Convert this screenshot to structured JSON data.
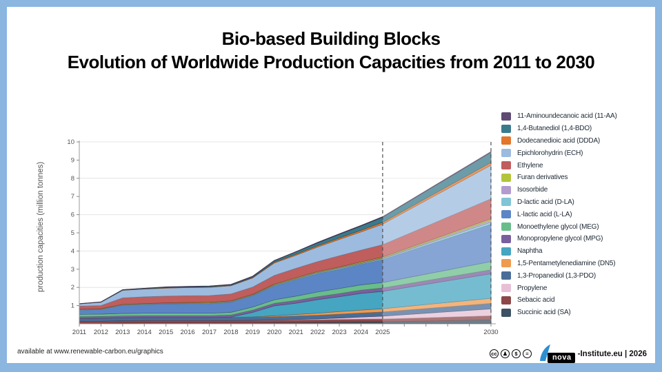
{
  "title": {
    "line1": "Bio-based Building Blocks",
    "line2": "Evolution of Worldwide Production Capacities from 2011 to 2030"
  },
  "footer": {
    "left_text": "available at www.renewable-carbon.eu/graphics",
    "cc_icons": [
      {
        "key": "cc",
        "glyph": "cc"
      },
      {
        "key": "by",
        "glyph": "♟"
      },
      {
        "key": "nc",
        "glyph": "$"
      },
      {
        "key": "nd",
        "glyph": "="
      }
    ],
    "logo_text": "nova",
    "logo_color": "#2e8fd0",
    "right_suffix": "-Institute.eu | 2026"
  },
  "chart_data": {
    "type": "area",
    "stacked": true,
    "stack_note": "series listed in legend order (top of stack first); stacked bottom-to-top in reverse list order",
    "ylabel": "production capacities (million tonnes)",
    "xlabel": "",
    "ylim": [
      0,
      10
    ],
    "y_axis": {
      "ticks": [
        1,
        2,
        3,
        4,
        5,
        6,
        7,
        8,
        9,
        10
      ],
      "gridlines": [
        2,
        4,
        6,
        8,
        10
      ]
    },
    "x_axis": {
      "first": 2011,
      "last": 2030,
      "labeled": [
        2011,
        2012,
        2013,
        2014,
        2015,
        2016,
        2017,
        2018,
        2019,
        2020,
        2021,
        2022,
        2023,
        2024,
        2025,
        2030
      ]
    },
    "dashed_years": [
      2025,
      2030
    ],
    "forecast_start": 2025,
    "x": [
      2011,
      2012,
      2013,
      2014,
      2015,
      2016,
      2017,
      2018,
      2019,
      2020,
      2021,
      2022,
      2023,
      2024,
      2025,
      2030
    ],
    "series": [
      {
        "id": "aa11",
        "name": "11-Aminoundecanoic acid (11-AA)",
        "color": "#5e4a73",
        "values": [
          0.01,
          0.01,
          0.01,
          0.01,
          0.02,
          0.02,
          0.02,
          0.02,
          0.02,
          0.02,
          0.02,
          0.03,
          0.03,
          0.03,
          0.03,
          0.05
        ]
      },
      {
        "id": "bdo14",
        "name": "1,4-Butanediol (1,4-BDO)",
        "color": "#3a7a8c",
        "values": [
          0.0,
          0.01,
          0.02,
          0.03,
          0.03,
          0.03,
          0.04,
          0.04,
          0.05,
          0.08,
          0.12,
          0.16,
          0.2,
          0.24,
          0.28,
          0.55
        ]
      },
      {
        "id": "ddda",
        "name": "Dodecanedioic acid (DDDA)",
        "color": "#e2772b",
        "values": [
          0.01,
          0.01,
          0.01,
          0.01,
          0.02,
          0.02,
          0.02,
          0.02,
          0.03,
          0.05,
          0.06,
          0.07,
          0.08,
          0.09,
          0.1,
          0.15
        ]
      },
      {
        "id": "ech",
        "name": "Epichlorohydrin (ECH)",
        "color": "#9cbbdf",
        "values": [
          0.12,
          0.18,
          0.42,
          0.43,
          0.44,
          0.45,
          0.45,
          0.45,
          0.5,
          0.68,
          0.72,
          0.8,
          0.9,
          1.0,
          1.13,
          1.85
        ]
      },
      {
        "id": "ethylene",
        "name": "Ethylene",
        "color": "#c05d5d",
        "values": [
          0.17,
          0.17,
          0.35,
          0.37,
          0.37,
          0.37,
          0.37,
          0.38,
          0.4,
          0.48,
          0.52,
          0.55,
          0.62,
          0.65,
          0.68,
          1.1
        ]
      },
      {
        "id": "furan",
        "name": "Furan derivatives",
        "color": "#b4c43a",
        "values": [
          0.02,
          0.02,
          0.02,
          0.02,
          0.03,
          0.03,
          0.03,
          0.03,
          0.03,
          0.04,
          0.04,
          0.04,
          0.04,
          0.05,
          0.05,
          0.08
        ]
      },
      {
        "id": "isosorbide",
        "name": "Isosorbide",
        "color": "#b29bce",
        "values": [
          0.01,
          0.01,
          0.01,
          0.01,
          0.02,
          0.02,
          0.02,
          0.02,
          0.02,
          0.03,
          0.03,
          0.03,
          0.04,
          0.04,
          0.04,
          0.1
        ]
      },
      {
        "id": "dla",
        "name": "D-lactic acid (D-LA)",
        "color": "#80c5d6",
        "values": [
          0.02,
          0.02,
          0.02,
          0.02,
          0.02,
          0.03,
          0.03,
          0.03,
          0.03,
          0.04,
          0.04,
          0.05,
          0.05,
          0.05,
          0.06,
          0.12
        ]
      },
      {
        "id": "lla",
        "name": "L-lactic acid (L-LA)",
        "color": "#5c85c6",
        "values": [
          0.23,
          0.25,
          0.45,
          0.48,
          0.5,
          0.51,
          0.52,
          0.55,
          0.62,
          0.75,
          0.9,
          1.0,
          1.05,
          1.12,
          1.25,
          2.05
        ]
      },
      {
        "id": "meg",
        "name": "Monoethylene glycol (MEG)",
        "color": "#68bd8b",
        "values": [
          0.13,
          0.13,
          0.14,
          0.14,
          0.14,
          0.14,
          0.14,
          0.15,
          0.17,
          0.2,
          0.24,
          0.26,
          0.28,
          0.29,
          0.3,
          0.45
        ]
      },
      {
        "id": "mpg",
        "name": "Monopropylene glycol (MPG)",
        "color": "#7a5f9f",
        "values": [
          0.1,
          0.1,
          0.1,
          0.1,
          0.1,
          0.1,
          0.1,
          0.11,
          0.12,
          0.13,
          0.15,
          0.16,
          0.17,
          0.18,
          0.19,
          0.22
        ]
      },
      {
        "id": "naphtha",
        "name": "Naphtha",
        "color": "#46a5c1",
        "values": [
          0,
          0,
          0,
          0,
          0,
          0,
          0,
          0.02,
          0.25,
          0.55,
          0.62,
          0.75,
          0.82,
          0.92,
          0.95,
          1.35
        ]
      },
      {
        "id": "dn5",
        "name": "1,5-Pentametylenediamine (DN5)",
        "color": "#ef9a4f",
        "values": [
          0,
          0,
          0,
          0,
          0,
          0,
          0,
          0,
          0.02,
          0.05,
          0.08,
          0.11,
          0.14,
          0.16,
          0.18,
          0.28
        ]
      },
      {
        "id": "pdo13",
        "name": "1,3-Propanediol (1,3-PDO)",
        "color": "#4a6d98",
        "values": [
          0.16,
          0.16,
          0.16,
          0.16,
          0.16,
          0.16,
          0.16,
          0.17,
          0.17,
          0.18,
          0.19,
          0.2,
          0.21,
          0.22,
          0.23,
          0.3
        ]
      },
      {
        "id": "propylene",
        "name": "Propylene",
        "color": "#e7c0d6",
        "values": [
          0,
          0,
          0,
          0,
          0,
          0,
          0,
          0,
          0.01,
          0.02,
          0.03,
          0.05,
          0.08,
          0.12,
          0.16,
          0.38
        ]
      },
      {
        "id": "sebacic",
        "name": "Sebacic acid",
        "color": "#8d4748",
        "values": [
          0.12,
          0.12,
          0.13,
          0.13,
          0.13,
          0.13,
          0.13,
          0.13,
          0.13,
          0.13,
          0.14,
          0.14,
          0.15,
          0.15,
          0.15,
          0.22
        ]
      },
      {
        "id": "sa",
        "name": "Succinic acid (SA)",
        "color": "#3d5263",
        "values": [
          0.01,
          0.02,
          0.04,
          0.05,
          0.05,
          0.05,
          0.05,
          0.05,
          0.05,
          0.06,
          0.07,
          0.08,
          0.09,
          0.1,
          0.11,
          0.22
        ]
      }
    ]
  }
}
